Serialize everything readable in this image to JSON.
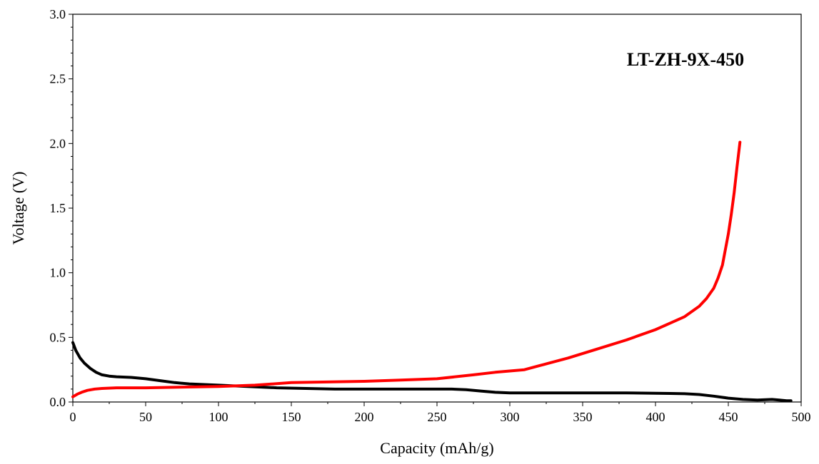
{
  "chart_data": {
    "type": "line",
    "title": "",
    "annotation": "LT-ZH-9X-450",
    "xlabel": "Capacity (mAh/g)",
    "ylabel": "Voltage (V)",
    "xlim": [
      0,
      500
    ],
    "ylim": [
      0,
      3.0
    ],
    "x_ticks": [
      0,
      50,
      100,
      150,
      200,
      250,
      300,
      350,
      400,
      450,
      500
    ],
    "x_tick_labels": [
      "0",
      "50",
      "100",
      "150",
      "200",
      "250",
      "300",
      "350",
      "400",
      "450",
      "500"
    ],
    "y_ticks": [
      0,
      0.5,
      1.0,
      1.5,
      2.0,
      2.5,
      3.0
    ],
    "y_tick_labels": [
      "0.0",
      "0.5",
      "1.0",
      "1.5",
      "2.0",
      "2.5",
      "3.0"
    ],
    "grid": false,
    "legend": "none",
    "series": [
      {
        "color": "#000000",
        "x": [
          0,
          2,
          5,
          8,
          12,
          16,
          20,
          25,
          30,
          40,
          50,
          60,
          70,
          80,
          90,
          100,
          120,
          140,
          160,
          180,
          200,
          220,
          240,
          260,
          270,
          280,
          290,
          300,
          320,
          350,
          380,
          400,
          410,
          420,
          430,
          440,
          450,
          460,
          470,
          480,
          485,
          490,
          493
        ],
        "y": [
          0.46,
          0.4,
          0.34,
          0.3,
          0.26,
          0.23,
          0.21,
          0.2,
          0.195,
          0.19,
          0.18,
          0.165,
          0.15,
          0.14,
          0.135,
          0.13,
          0.12,
          0.11,
          0.105,
          0.1,
          0.1,
          0.1,
          0.1,
          0.1,
          0.095,
          0.085,
          0.075,
          0.07,
          0.07,
          0.07,
          0.07,
          0.068,
          0.066,
          0.064,
          0.058,
          0.045,
          0.03,
          0.02,
          0.015,
          0.02,
          0.015,
          0.01,
          0.01
        ]
      },
      {
        "color": "#ff0000",
        "x": [
          0,
          3,
          6,
          10,
          15,
          20,
          30,
          50,
          75,
          100,
          125,
          150,
          175,
          200,
          225,
          250,
          275,
          290,
          300,
          310,
          320,
          340,
          360,
          380,
          400,
          410,
          420,
          430,
          435,
          440,
          443,
          446,
          448,
          450,
          452,
          454,
          456,
          458
        ],
        "y": [
          0.04,
          0.06,
          0.075,
          0.09,
          0.1,
          0.105,
          0.11,
          0.11,
          0.115,
          0.12,
          0.13,
          0.15,
          0.155,
          0.16,
          0.17,
          0.18,
          0.21,
          0.23,
          0.24,
          0.25,
          0.28,
          0.34,
          0.41,
          0.48,
          0.56,
          0.61,
          0.66,
          0.74,
          0.8,
          0.88,
          0.96,
          1.06,
          1.18,
          1.3,
          1.45,
          1.62,
          1.82,
          2.01
        ]
      }
    ]
  }
}
